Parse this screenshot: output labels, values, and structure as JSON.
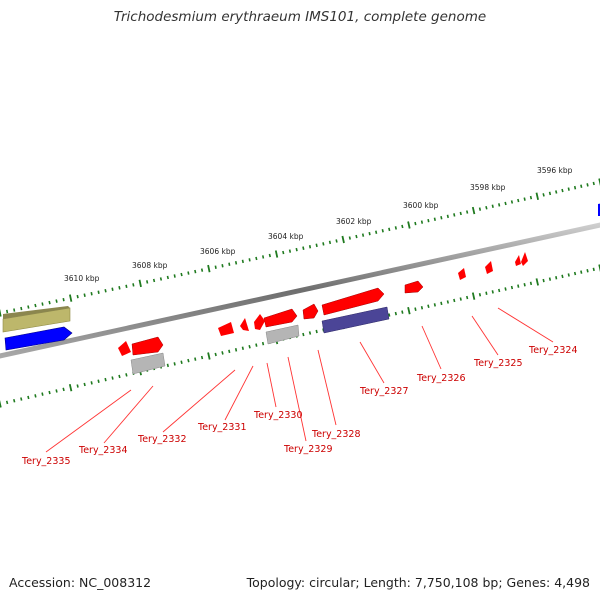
{
  "title": "Trichodesmium erythraeum IMS101, complete genome",
  "footer": {
    "accession": "Accession: NC_008312",
    "summary": "Topology: circular; Length: 7,750,108 bp; Genes: 4,498"
  },
  "scale_ticks": [
    "3596 kbp",
    "3598 kbp",
    "3600 kbp",
    "3602 kbp",
    "3604 kbp",
    "3606 kbp",
    "3608 kbp",
    "3610 kbp"
  ],
  "gene_labels": [
    "Tery_2324",
    "Tery_2325",
    "Tery_2326",
    "Tery_2327",
    "Tery_2328",
    "Tery_2329",
    "Tery_2330",
    "Tery_2331",
    "Tery_2332",
    "Tery_2334",
    "Tery_2335"
  ],
  "colors": {
    "backbone": "#7a7a7a",
    "tick": "#1f7a1f",
    "gene_red": "#ff0000",
    "gene_blue": "#0000ff",
    "gene_olive": "#bdb76b",
    "gene_slate": "#4b4597",
    "gene_gray": "#b0b0b0",
    "label": "#cc0000"
  }
}
